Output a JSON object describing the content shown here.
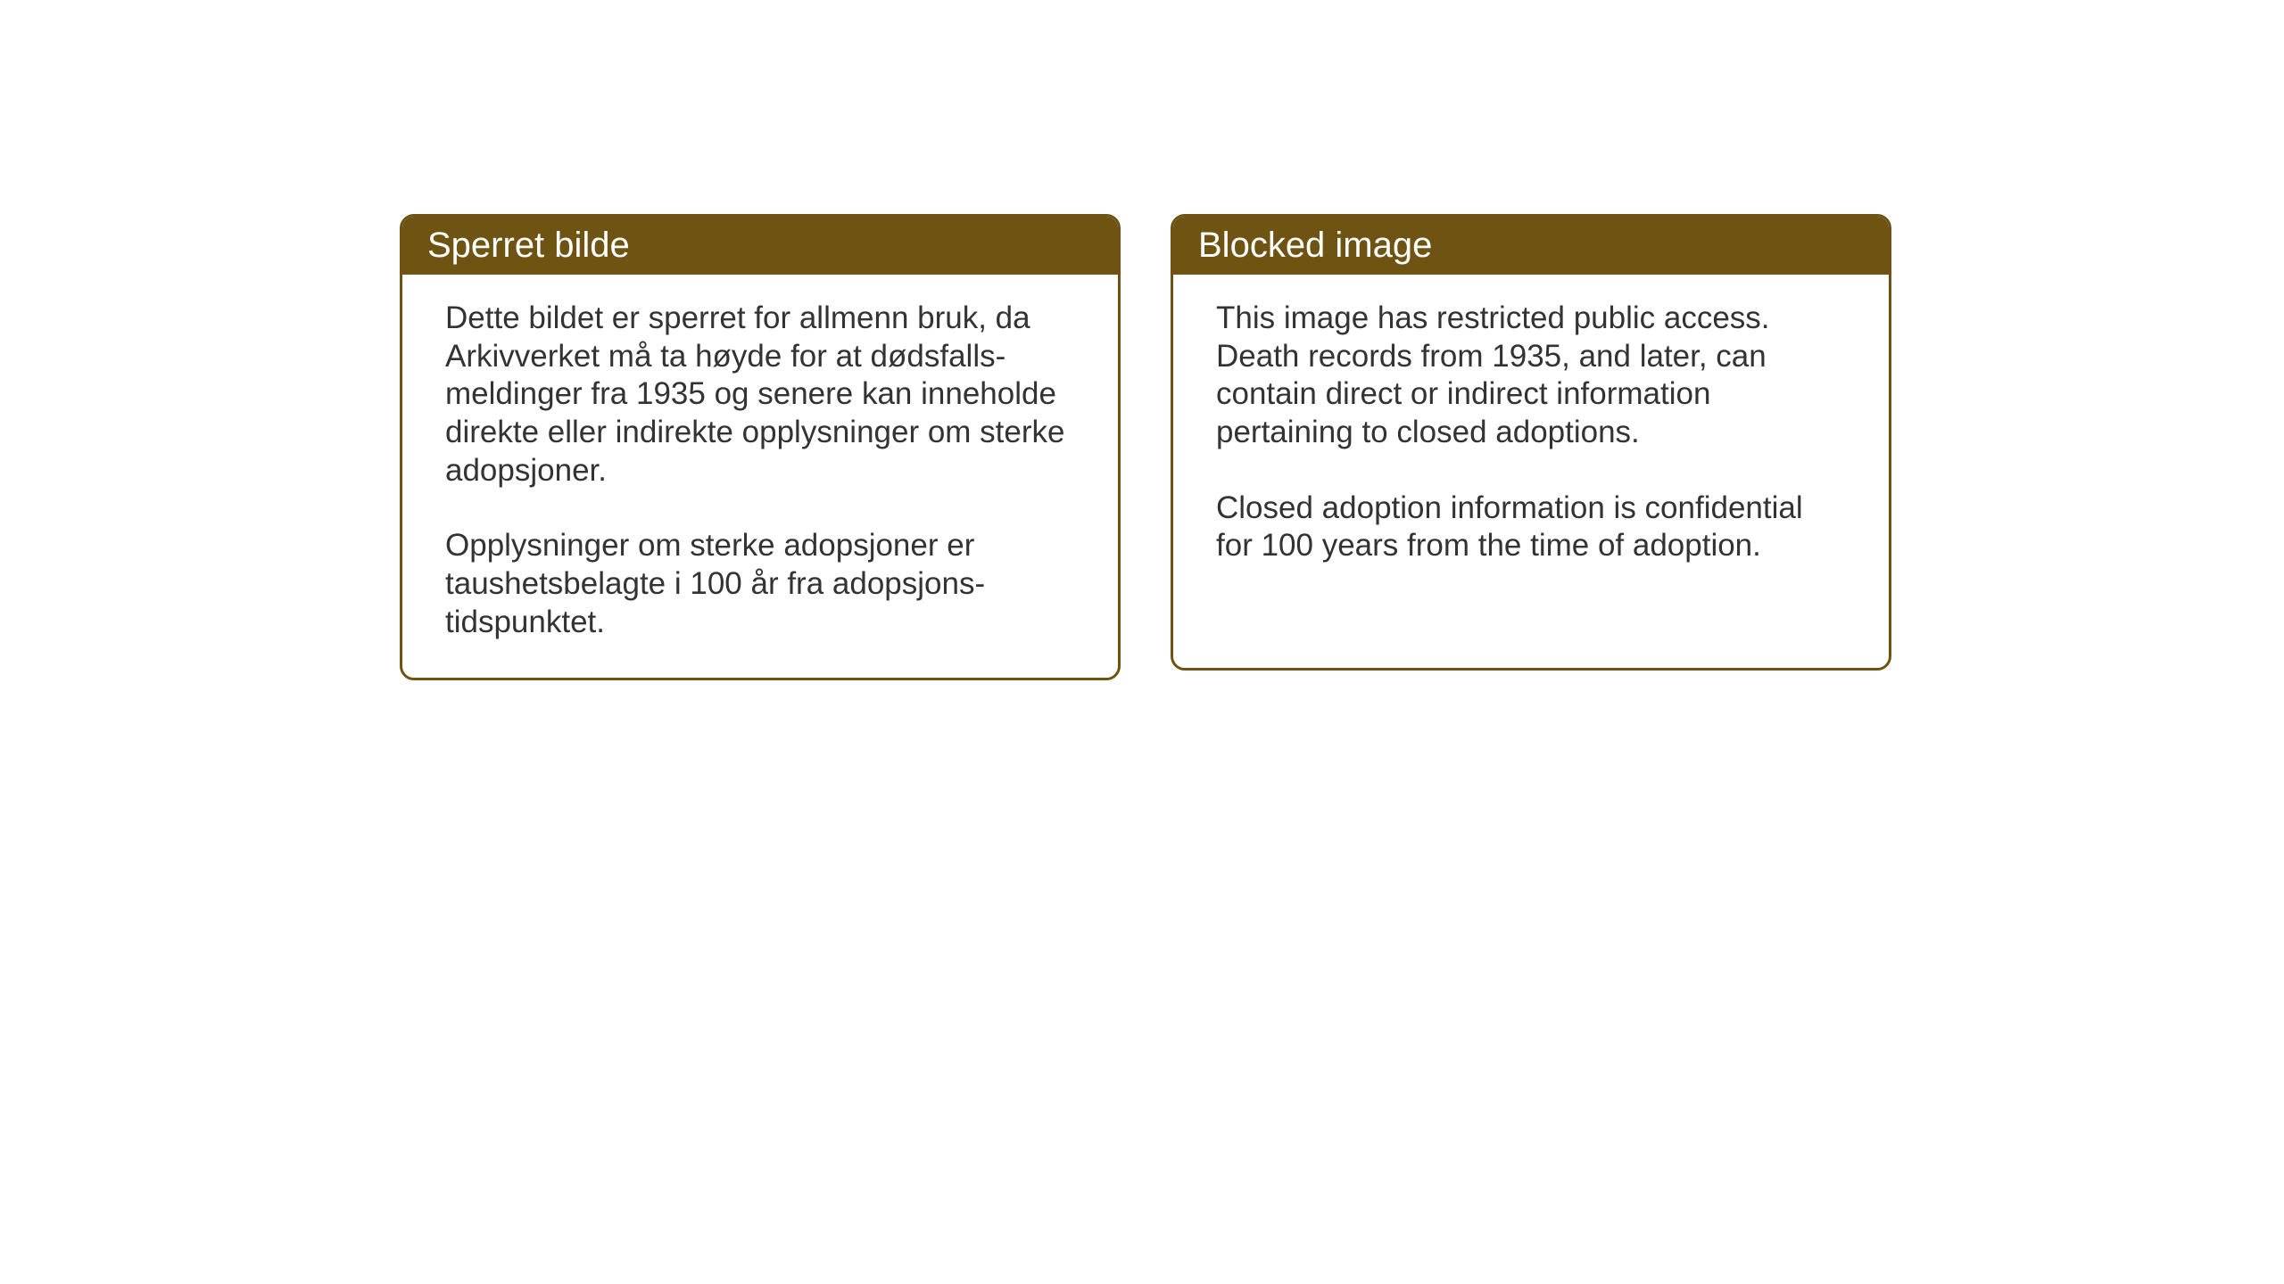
{
  "background_color": "#ffffff",
  "card_border_color": "#6e5312",
  "card_header_bg": "#6e5312",
  "card_header_text_color": "#ffffff",
  "card_body_text_color": "#333333",
  "card_header_fontsize": 40,
  "card_body_fontsize": 35,
  "cards": {
    "norwegian": {
      "title": "Sperret bilde",
      "paragraph1": "Dette bildet er sperret for allmenn bruk, da Arkivverket må ta høyde for at dødsfalls-meldinger fra 1935 og senere kan inneholde direkte eller indirekte opplysninger om sterke adopsjoner.",
      "paragraph2": "Opplysninger om sterke adopsjoner er taushetsbelagte i 100 år fra adopsjons-tidspunktet."
    },
    "english": {
      "title": "Blocked image",
      "paragraph1": "This image has restricted public access. Death records from 1935, and later, can contain direct or indirect information pertaining to closed adoptions.",
      "paragraph2": "Closed adoption information is confidential for 100 years from the time of adoption."
    }
  }
}
